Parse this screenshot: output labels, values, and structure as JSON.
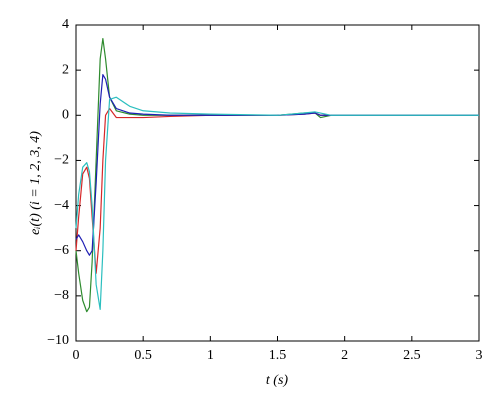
{
  "chart_data": {
    "type": "line",
    "xlabel": "t (s)",
    "ylabel": "eᵢ(t) (i = 1, 2, 3, 4)",
    "x": [
      0,
      0.02,
      0.05,
      0.08,
      0.1,
      0.12,
      0.15,
      0.18,
      0.2,
      0.22,
      0.25,
      0.3,
      0.4,
      0.5,
      0.7,
      1,
      1.5,
      1.7,
      1.78,
      1.82,
      1.9,
      2,
      2.5,
      3
    ],
    "series": [
      {
        "color": "#2e8b2e",
        "values": [
          -6,
          -7,
          -8.2,
          -8.7,
          -8.5,
          -6.5,
          -2,
          2.5,
          3.4,
          2.5,
          0.8,
          0.2,
          0.05,
          0,
          0,
          0,
          0,
          0.1,
          0.1,
          -0.1,
          0,
          0,
          0,
          0
        ]
      },
      {
        "color": "#d62728",
        "values": [
          -6,
          -4.5,
          -2.6,
          -2.3,
          -2.8,
          -4.5,
          -7,
          -5,
          -2,
          0,
          0.3,
          -0.1,
          -0.1,
          -0.1,
          -0.05,
          0,
          0,
          0.05,
          0.1,
          0,
          0,
          0,
          0,
          0
        ]
      },
      {
        "color": "#1f1fb4",
        "values": [
          -5.5,
          -5.3,
          -5.6,
          -6,
          -6.2,
          -6,
          -3,
          0.5,
          1.8,
          1.6,
          0.8,
          0.3,
          0.1,
          0.05,
          0,
          0,
          0,
          0.05,
          0.1,
          0,
          0,
          0,
          0,
          0
        ]
      },
      {
        "color": "#2bbfbf",
        "values": [
          -5,
          -3.5,
          -2.3,
          -2.1,
          -2.5,
          -4,
          -7.5,
          -8.6,
          -6,
          -2,
          0.7,
          0.8,
          0.4,
          0.2,
          0.1,
          0.05,
          0,
          0.1,
          0.15,
          0.1,
          0,
          0,
          0,
          0
        ]
      }
    ],
    "xlim": [
      0,
      3
    ],
    "xticks": [
      0,
      0.5,
      1,
      1.5,
      2,
      2.5,
      3
    ],
    "ylim": [
      -10,
      4
    ],
    "yticks": [
      -10,
      -8,
      -6,
      -4,
      -2,
      0,
      2,
      4
    ]
  }
}
